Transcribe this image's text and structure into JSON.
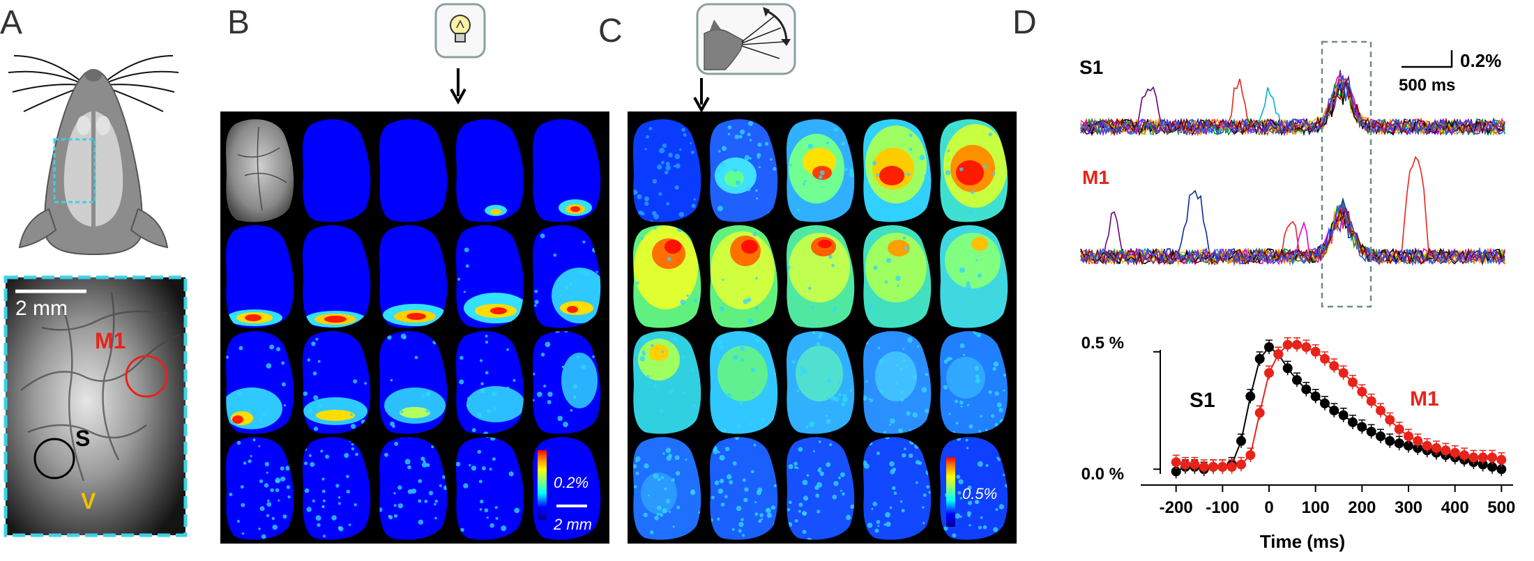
{
  "panels": {
    "a": {
      "label": "A",
      "scale_label": "2 mm",
      "roi_labels": {
        "m1": "M1",
        "s": "S",
        "v": "V"
      }
    },
    "b": {
      "label": "B",
      "stimulus_icon": "light-bulb-icon",
      "colorbar_label": "0.2%",
      "scale_label": "2 mm"
    },
    "c": {
      "label": "C",
      "stimulus_icon": "whisker-deflection-icon",
      "colorbar_label": "0.5%"
    },
    "d": {
      "label": "D",
      "trace_labels": {
        "s1": "S1",
        "m1": "M1"
      },
      "scalebar": {
        "amplitude": "0.2%",
        "time": "500 ms"
      }
    }
  },
  "colors": {
    "roi_m1": "#e8231a",
    "roi_s": "#000000",
    "roi_v": "#f2c200",
    "inset_border": "#3fd0e6",
    "map_background": "#0000ff"
  },
  "chart_data": {
    "type": "scatter",
    "title": "",
    "xlabel": "Time (ms)",
    "ylabel": "",
    "xlim": [
      -210,
      510
    ],
    "ylim": [
      -0.02,
      0.55
    ],
    "xticks": [
      -200,
      -100,
      0,
      100,
      200,
      300,
      400,
      500
    ],
    "xtick_labels": [
      "-200",
      "-100",
      "0",
      "100",
      "200",
      "300",
      "400",
      "500"
    ],
    "yticks": [
      0.0,
      0.5
    ],
    "ytick_labels": [
      "0.0 %",
      "0.5 %"
    ],
    "x": [
      -200,
      -180,
      -160,
      -140,
      -120,
      -100,
      -80,
      -60,
      -40,
      -20,
      0,
      20,
      40,
      60,
      80,
      100,
      120,
      140,
      160,
      180,
      200,
      220,
      240,
      260,
      280,
      300,
      320,
      340,
      360,
      380,
      400,
      420,
      440,
      460,
      480,
      500
    ],
    "series": [
      {
        "name": "S1",
        "color": "#000000",
        "values": [
          -0.01,
          0.01,
          0.01,
          0.0,
          0.01,
          0.01,
          0.02,
          0.12,
          0.31,
          0.47,
          0.52,
          0.49,
          0.43,
          0.38,
          0.34,
          0.31,
          0.28,
          0.25,
          0.23,
          0.2,
          0.18,
          0.16,
          0.14,
          0.12,
          0.11,
          0.1,
          0.09,
          0.08,
          0.07,
          0.06,
          0.05,
          0.04,
          0.03,
          0.02,
          0.01,
          0.0
        ]
      },
      {
        "name": "M1",
        "color": "#e8231a",
        "values": [
          0.03,
          0.02,
          0.02,
          0.01,
          0.01,
          0.01,
          0.01,
          0.02,
          0.06,
          0.24,
          0.41,
          0.49,
          0.53,
          0.53,
          0.52,
          0.5,
          0.47,
          0.44,
          0.41,
          0.37,
          0.33,
          0.29,
          0.25,
          0.21,
          0.17,
          0.14,
          0.12,
          0.1,
          0.09,
          0.08,
          0.07,
          0.06,
          0.05,
          0.05,
          0.05,
          0.04
        ]
      }
    ]
  }
}
